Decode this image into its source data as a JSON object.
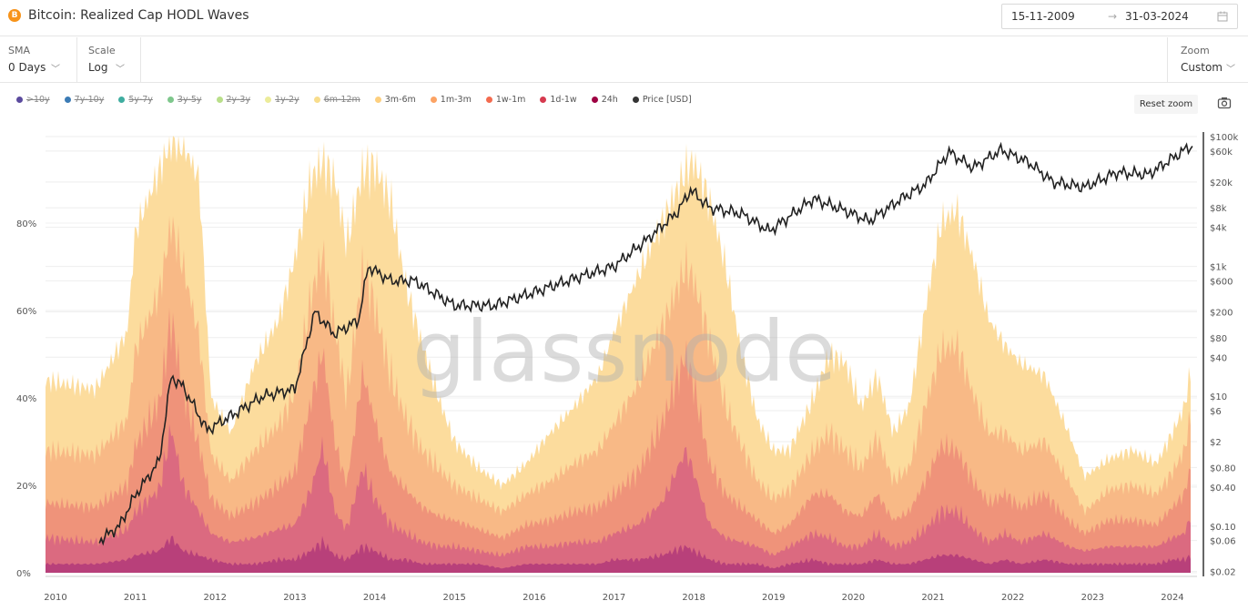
{
  "header": {
    "title": "Bitcoin: Realized Cap HODL Waves",
    "btc_icon": "B",
    "date_from": "15-11-2009",
    "date_arrow": "→",
    "date_to": "31-03-2024"
  },
  "controls": {
    "sma_label": "SMA",
    "sma_value": "0 Days",
    "scale_label": "Scale",
    "scale_value": "Log",
    "zoom_label": "Zoom",
    "zoom_value": "Custom"
  },
  "toolbar": {
    "reset_zoom": "Reset zoom"
  },
  "watermark": "glassnode",
  "chart_data": {
    "type": "area",
    "title": "Bitcoin: Realized Cap HODL Waves",
    "legend": [
      {
        "name": ">10y",
        "color": "#5b4a9e",
        "visible": false
      },
      {
        "name": "7y-10y",
        "color": "#3b7bb5",
        "visible": false
      },
      {
        "name": "5y-7y",
        "color": "#3fada0",
        "visible": false
      },
      {
        "name": "3y-5y",
        "color": "#7ec78c",
        "visible": false
      },
      {
        "name": "2y-3y",
        "color": "#b9df8a",
        "visible": false
      },
      {
        "name": "1y-2y",
        "color": "#ecec9a",
        "visible": false
      },
      {
        "name": "6m-12m",
        "color": "#f8dd8c",
        "visible": false
      },
      {
        "name": "3m-6m",
        "color": "#fdcf7e",
        "visible": true
      },
      {
        "name": "1m-3m",
        "color": "#fca364",
        "visible": true
      },
      {
        "name": "1w-1m",
        "color": "#f36b4f",
        "visible": true
      },
      {
        "name": "1d-1w",
        "color": "#d63a4f",
        "visible": true
      },
      {
        "name": "24h",
        "color": "#9e0142",
        "visible": true
      },
      {
        "name": "Price [USD]",
        "color": "#333333",
        "visible": true
      }
    ],
    "band_order": [
      "24h",
      "1d-1w",
      "1w-1m",
      "1m-3m",
      "3m-6m"
    ],
    "band_fill": [
      "#b8407a",
      "#db6a80",
      "#ef937a",
      "#f8b986",
      "#fcdc9d"
    ],
    "x": [
      2009.87,
      2010.5,
      2010.9,
      2011.0,
      2011.3,
      2011.45,
      2011.6,
      2011.8,
      2011.95,
      2012.2,
      2012.5,
      2012.8,
      2013.0,
      2013.2,
      2013.35,
      2013.5,
      2013.65,
      2013.85,
      2014.0,
      2014.2,
      2014.4,
      2014.6,
      2014.8,
      2015.0,
      2015.3,
      2015.6,
      2015.9,
      2016.2,
      2016.5,
      2016.8,
      2017.0,
      2017.3,
      2017.6,
      2017.9,
      2018.0,
      2018.2,
      2018.4,
      2018.6,
      2018.8,
      2019.0,
      2019.2,
      2019.5,
      2019.7,
      2019.9,
      2020.1,
      2020.3,
      2020.5,
      2020.7,
      2020.9,
      2021.1,
      2021.3,
      2021.5,
      2021.7,
      2021.9,
      2022.1,
      2022.4,
      2022.7,
      2022.9,
      2023.2,
      2023.5,
      2023.8,
      2024.0,
      2024.15,
      2024.25
    ],
    "shares_pct": [
      [
        2,
        6,
        8,
        12,
        16
      ],
      [
        2,
        5,
        8,
        12,
        15
      ],
      [
        3,
        7,
        10,
        15,
        20
      ],
      [
        4,
        10,
        15,
        22,
        27
      ],
      [
        5,
        14,
        20,
        25,
        28
      ],
      [
        8,
        25,
        25,
        22,
        19
      ],
      [
        5,
        15,
        22,
        28,
        28
      ],
      [
        4,
        10,
        15,
        25,
        36
      ],
      [
        3,
        6,
        8,
        10,
        13
      ],
      [
        2,
        5,
        6,
        8,
        11
      ],
      [
        2,
        6,
        8,
        12,
        20
      ],
      [
        3,
        7,
        10,
        14,
        24
      ],
      [
        3,
        8,
        12,
        18,
        31
      ],
      [
        5,
        14,
        20,
        24,
        27
      ],
      [
        7,
        22,
        22,
        22,
        21
      ],
      [
        4,
        10,
        16,
        26,
        34
      ],
      [
        3,
        7,
        10,
        20,
        35
      ],
      [
        6,
        18,
        22,
        24,
        22
      ],
      [
        5,
        12,
        18,
        26,
        32
      ],
      [
        3,
        8,
        12,
        22,
        40
      ],
      [
        3,
        6,
        10,
        16,
        30
      ],
      [
        2,
        5,
        8,
        13,
        24
      ],
      [
        2,
        4,
        7,
        11,
        16
      ],
      [
        2,
        4,
        6,
        8,
        10
      ],
      [
        2,
        3,
        5,
        7,
        7
      ],
      [
        1,
        3,
        4,
        6,
        6
      ],
      [
        2,
        4,
        5,
        7,
        7
      ],
      [
        2,
        4,
        6,
        9,
        11
      ],
      [
        2,
        5,
        7,
        11,
        13
      ],
      [
        2,
        5,
        8,
        13,
        17
      ],
      [
        3,
        6,
        9,
        16,
        21
      ],
      [
        3,
        8,
        12,
        20,
        25
      ],
      [
        4,
        12,
        18,
        22,
        24
      ],
      [
        6,
        22,
        22,
        20,
        22
      ],
      [
        5,
        18,
        20,
        24,
        27
      ],
      [
        3,
        8,
        14,
        28,
        32
      ],
      [
        2,
        6,
        10,
        20,
        32
      ],
      [
        2,
        5,
        8,
        14,
        21
      ],
      [
        2,
        4,
        6,
        9,
        14
      ],
      [
        1,
        3,
        5,
        8,
        11
      ],
      [
        2,
        4,
        5,
        8,
        9
      ],
      [
        3,
        6,
        9,
        10,
        12
      ],
      [
        2,
        6,
        10,
        14,
        18
      ],
      [
        2,
        4,
        8,
        14,
        20
      ],
      [
        2,
        4,
        7,
        11,
        14
      ],
      [
        3,
        6,
        9,
        13,
        14
      ],
      [
        2,
        4,
        6,
        9,
        11
      ],
      [
        2,
        5,
        7,
        10,
        14
      ],
      [
        3,
        7,
        11,
        17,
        22
      ],
      [
        4,
        10,
        15,
        22,
        29
      ],
      [
        4,
        10,
        14,
        24,
        31
      ],
      [
        3,
        7,
        11,
        20,
        31
      ],
      [
        2,
        5,
        9,
        16,
        26
      ],
      [
        3,
        6,
        9,
        14,
        20
      ],
      [
        2,
        5,
        8,
        13,
        20
      ],
      [
        3,
        6,
        9,
        12,
        15
      ],
      [
        2,
        4,
        6,
        9,
        11
      ],
      [
        2,
        3,
        4,
        5,
        8
      ],
      [
        2,
        4,
        6,
        7,
        7
      ],
      [
        2,
        4,
        6,
        8,
        8
      ],
      [
        2,
        4,
        5,
        7,
        7
      ],
      [
        3,
        5,
        7,
        8,
        9
      ],
      [
        3,
        6,
        9,
        10,
        10
      ],
      [
        4,
        10,
        12,
        12,
        10
      ]
    ],
    "price": {
      "x": [
        2010.55,
        2010.8,
        2011.0,
        2011.3,
        2011.45,
        2011.6,
        2011.9,
        2012.2,
        2012.6,
        2013.0,
        2013.25,
        2013.5,
        2013.8,
        2013.92,
        2014.2,
        2014.5,
        2015.0,
        2015.5,
        2016.0,
        2016.5,
        2017.0,
        2017.4,
        2017.8,
        2017.96,
        2018.2,
        2018.6,
        2018.95,
        2019.5,
        2019.9,
        2020.2,
        2020.6,
        2020.9,
        2021.2,
        2021.5,
        2021.85,
        2022.2,
        2022.5,
        2022.9,
        2023.3,
        2023.7,
        2023.95,
        2024.2,
        2024.25
      ],
      "y": [
        0.06,
        0.1,
        0.3,
        1,
        20,
        14,
        3,
        5,
        10,
        13,
        200,
        90,
        150,
        1000,
        600,
        600,
        250,
        250,
        400,
        650,
        1000,
        2500,
        7000,
        15000,
        8000,
        6500,
        3500,
        11000,
        7200,
        5000,
        11000,
        18000,
        58000,
        33000,
        62000,
        40000,
        20000,
        16500,
        28000,
        26000,
        42000,
        68000,
        70000
      ]
    },
    "y_left": {
      "ticks": [
        "0%",
        "20%",
        "40%",
        "60%",
        "80%"
      ],
      "values": [
        0,
        20,
        40,
        60,
        80
      ],
      "range": [
        0,
        100
      ]
    },
    "y_right": {
      "scale": "log",
      "ticks": [
        "$100k",
        "$60k",
        "$20k",
        "$8k",
        "$4k",
        "$1k",
        "$600",
        "$200",
        "$80",
        "$40",
        "$10",
        "$6",
        "$2",
        "$0.80",
        "$0.40",
        "$0.10",
        "$0.06",
        "$0.02"
      ],
      "values": [
        100000,
        60000,
        20000,
        8000,
        4000,
        1000,
        600,
        200,
        80,
        40,
        10,
        6,
        2,
        0.8,
        0.4,
        0.1,
        0.06,
        0.02
      ]
    },
    "x_axis": {
      "ticks": [
        "2010",
        "2011",
        "2012",
        "2013",
        "2014",
        "2015",
        "2016",
        "2017",
        "2018",
        "2019",
        "2020",
        "2021",
        "2022",
        "2023",
        "2024"
      ],
      "values": [
        2010,
        2011,
        2012,
        2013,
        2014,
        2015,
        2016,
        2017,
        2018,
        2019,
        2020,
        2021,
        2022,
        2023,
        2024
      ]
    }
  }
}
